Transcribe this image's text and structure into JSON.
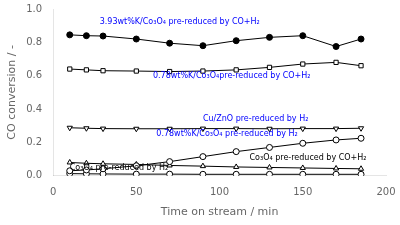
{
  "chart_data": {
    "type": "line",
    "x": [
      10,
      20,
      30,
      50,
      70,
      90,
      110,
      130,
      150,
      170,
      185
    ],
    "series": [
      {
        "color": "black",
        "marker": "circle",
        "values": [
          0.845,
          0.84,
          0.838,
          0.82,
          0.795,
          0.78,
          0.81,
          0.83,
          0.84,
          0.775,
          0.82
        ]
      },
      {
        "color": "black",
        "marker": "open square",
        "values": [
          0.64,
          0.635,
          0.63,
          0.628,
          0.625,
          0.628,
          0.635,
          0.65,
          0.67,
          0.68,
          0.66
        ]
      },
      {
        "color": "black",
        "marker": "open triangle-down",
        "values": [
          0.288,
          0.285,
          0.283,
          0.282,
          0.282,
          0.283,
          0.283,
          0.282,
          0.283,
          0.283,
          0.285
        ]
      },
      {
        "color": "black",
        "marker": "open circle",
        "values": [
          0.03,
          0.035,
          0.042,
          0.06,
          0.085,
          0.115,
          0.145,
          0.17,
          0.195,
          0.215,
          0.225
        ]
      },
      {
        "color": "black",
        "marker": "open triangle",
        "values": [
          0.08,
          0.075,
          0.072,
          0.068,
          0.062,
          0.058,
          0.053,
          0.05,
          0.047,
          0.044,
          0.042
        ]
      },
      {
        "color": "black",
        "marker": "open circle",
        "values": [
          0.013,
          0.012,
          0.011,
          0.01,
          0.01,
          0.009,
          0.009,
          0.009,
          0.009,
          0.009,
          0.009
        ]
      }
    ],
    "annotations": [
      {
        "text": "3.93wt%K/Co₃O₄ pre-reduced by CO+H₂",
        "x": 28,
        "y": 0.9,
        "color": "blue"
      },
      {
        "text": "0.78wt%K/Co₃O₄pre-reduced by CO+H₂",
        "x": 60,
        "y": 0.572,
        "color": "blue"
      },
      {
        "text": "Cu/ZnO pre-reduced by H₂",
        "x": 90,
        "y": 0.318,
        "color": "blue"
      },
      {
        "text": "0.78wt%K/Co₃O₄ pre-reduced by H₂",
        "x": 62,
        "y": 0.23,
        "color": "blue"
      },
      {
        "text": "Co₃O₄ pre-reduced by CO+H₂",
        "x": 118,
        "y": 0.082,
        "color": "black"
      },
      {
        "text": "Co₃O₄ pre-reduced by H₂",
        "x": 10,
        "y": 0.025,
        "color": "black"
      }
    ],
    "xlabel": "Time on stream / min",
    "ylabel": "CO conversion / -",
    "xlim": [
      0,
      200
    ],
    "ylim": [
      0,
      1.0
    ],
    "xticks": [
      0,
      50,
      100,
      150,
      200
    ],
    "yticks": [
      {
        "value": 0,
        "label": "0.0"
      },
      0.2,
      0.4,
      0.6,
      0.8,
      {
        "value": 1.0,
        "label": "1.0"
      }
    ],
    "grid": false
  }
}
